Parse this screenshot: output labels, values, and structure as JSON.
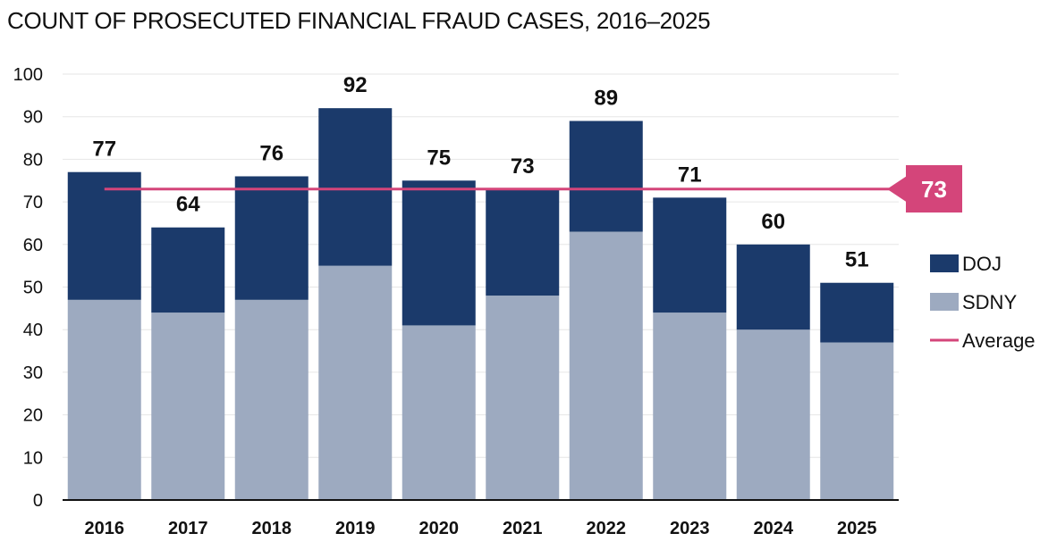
{
  "chart_data": {
    "type": "bar",
    "stacked": true,
    "title": "COUNT OF PROSECUTED FINANCIAL FRAUD CASES, 2016–2025",
    "categories": [
      "2016",
      "2017",
      "2018",
      "2019",
      "2020",
      "2021",
      "2022",
      "2023",
      "2024",
      "2025"
    ],
    "series": [
      {
        "name": "SDNY",
        "color": "#9daac0",
        "values": [
          47,
          44,
          47,
          55,
          41,
          48,
          63,
          44,
          40,
          37
        ]
      },
      {
        "name": "DOJ",
        "color": "#1b3a6b",
        "values": [
          30,
          20,
          29,
          37,
          34,
          25,
          26,
          27,
          20,
          14
        ]
      }
    ],
    "totals": [
      77,
      64,
      76,
      92,
      75,
      73,
      89,
      71,
      60,
      51
    ],
    "average": {
      "name": "Average",
      "value": 73,
      "label": "73",
      "color": "#d4457a"
    },
    "legend": [
      "DOJ",
      "SDNY",
      "Average"
    ],
    "legend_position": "right",
    "ylim": [
      0,
      100
    ],
    "yticks": [
      0,
      10,
      20,
      30,
      40,
      50,
      60,
      70,
      80,
      90,
      100
    ],
    "grid": true
  }
}
